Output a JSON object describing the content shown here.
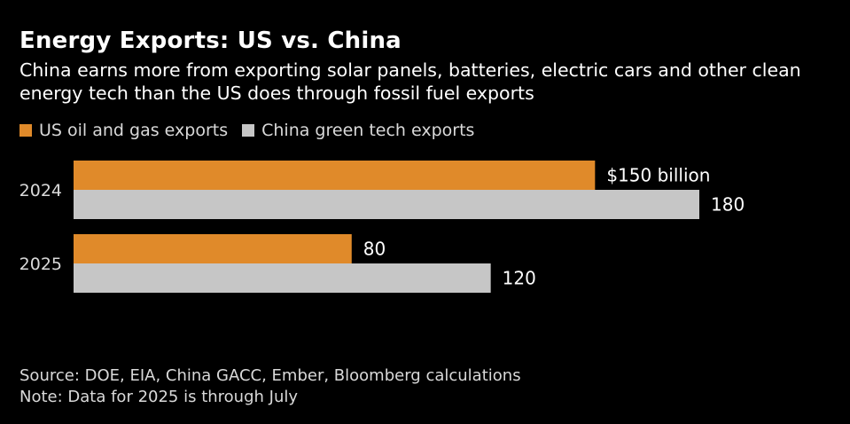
{
  "title": "Energy Exports: US vs. China",
  "subtitle": "China earns more from exporting solar panels, batteries, electric cars and other clean energy tech than the US does through fossil fuel exports",
  "colors": {
    "us": "#e08a2a",
    "china": "#c6c6c6",
    "background": "#000000"
  },
  "chart_data": {
    "type": "bar",
    "orientation": "horizontal",
    "title": "Energy Exports: US vs. China",
    "categories": [
      "2024",
      "2025"
    ],
    "series": [
      {
        "name": "US oil and gas exports",
        "values": [
          150,
          80
        ],
        "labels": [
          "$150 billion",
          "80"
        ]
      },
      {
        "name": "China green tech exports",
        "values": [
          180,
          120
        ],
        "labels": [
          "180",
          "120"
        ]
      }
    ],
    "unit": "billion USD",
    "xlim": [
      0,
      180
    ],
    "legend": "top-left",
    "grid": false
  },
  "footer": {
    "source": "Source: DOE, EIA, China GACC, Ember, Bloomberg calculations",
    "note": "Note: Data for 2025 is through July"
  }
}
